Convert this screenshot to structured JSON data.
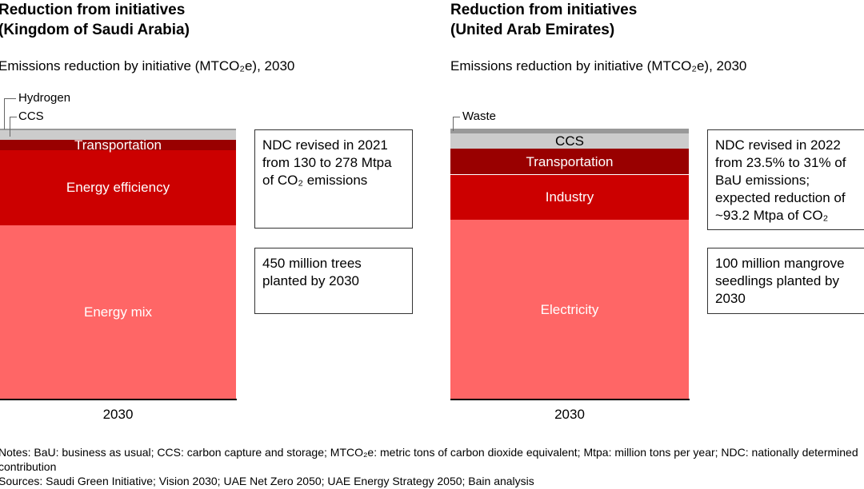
{
  "colors": {
    "hydrogen": "#999999",
    "ccs": "#cccccc",
    "transportation": "#990000",
    "industry_efficiency": "#cc0000",
    "mix": "#ff6666",
    "axis": "#000000"
  },
  "chart_data": [
    {
      "type": "bar",
      "stacked": true,
      "title": "Reduction from initiatives",
      "title2": "(Kingdom of Saudi Arabia)",
      "subtitle": "Emissions reduction by initiative (MTCO₂e), 2030",
      "categories": [
        "2030"
      ],
      "series": [
        {
          "name": "Energy mix",
          "values": [
            179
          ],
          "color": "#ff6666",
          "label_inside": true,
          "label_color": "#ffffff"
        },
        {
          "name": "Energy efficiency",
          "values": [
            77
          ],
          "color": "#cc0000",
          "label_inside": true,
          "label_color": "#ffffff"
        },
        {
          "name": "Transportation",
          "values": [
            10.7
          ],
          "color": "#990000",
          "label_inside": true,
          "label_color": "#ffffff"
        },
        {
          "name": "CCS",
          "values": [
            9.5
          ],
          "color": "#cccccc",
          "label_inside": false
        },
        {
          "name": "Hydrogen",
          "values": [
            1.6
          ],
          "color": "#999999",
          "label_inside": false
        }
      ],
      "annotations": [
        "NDC revised in 2021 from 130 to 278 Mtpa of CO₂ emissions",
        "450 million trees planted by 2030"
      ]
    },
    {
      "type": "bar",
      "stacked": true,
      "title": "Reduction from initiatives",
      "title2": "(United Arab Emirates)",
      "subtitle": "Emissions reduction by initiative (MTCO₂e), 2030",
      "categories": [
        "2030"
      ],
      "series": [
        {
          "name": "Electricity",
          "values": [
            62.0
          ],
          "color": "#ff6666",
          "label_inside": true,
          "label_color": "#ffffff"
        },
        {
          "name": "Industry",
          "values": [
            15.4
          ],
          "color": "#cc0000",
          "label_inside": true,
          "label_color": "#ffffff"
        },
        {
          "name": "Transportation",
          "values": [
            9.0
          ],
          "color": "#990000",
          "label_inside": true,
          "label_color": "#ffffff"
        },
        {
          "name": "CCS",
          "values": [
            5.1
          ],
          "color": "#cccccc",
          "label_inside": true,
          "label_color": "#000000"
        },
        {
          "name": "Waste",
          "values": [
            1.7
          ],
          "color": "#999999",
          "label_inside": false
        }
      ],
      "annotations": [
        "NDC revised in 2022 from 23.5% to 31% of BaU emissions; expected reduction of ~93.2 Mtpa of CO₂",
        "100 million mangrove seedlings planted by 2030"
      ]
    }
  ],
  "notes": "Notes: BaU: business as usual; CCS: carbon capture and storage; MTCO₂e: metric tons of carbon dioxide equivalent; Mtpa: million tons per year; NDC: nationally determined contribution",
  "sources": "Sources: Saudi Green Initiative; Vision 2030; UAE Net Zero 2050; UAE Energy Strategy 2050; Bain analysis"
}
